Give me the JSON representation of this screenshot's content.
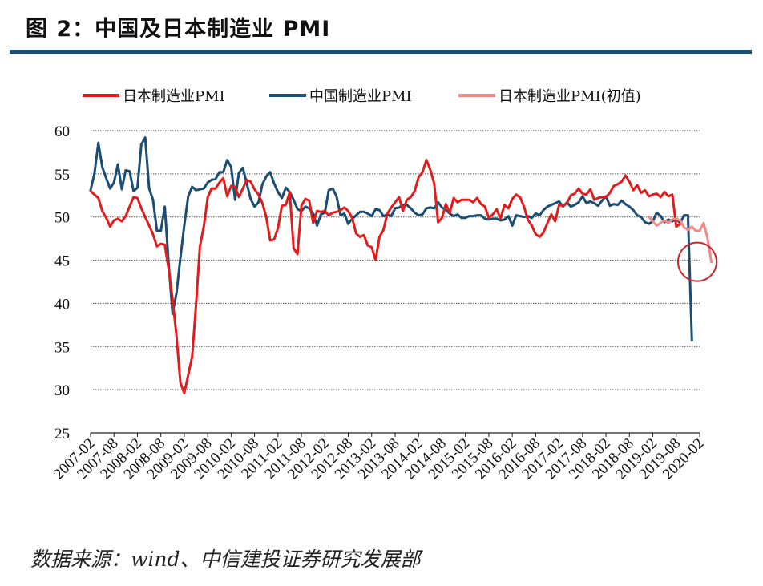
{
  "figure": {
    "title": "图 2：中国及日本制造业 PMI",
    "source": "数据来源：wind、中信建投证券研究发展部"
  },
  "colors": {
    "title_rule": "#1b4e72",
    "japan": "#e21c1c",
    "china": "#1b4e72",
    "japan_prelim": "#f08a8a",
    "circle": "#d0232a"
  },
  "chart_data": {
    "type": "line",
    "title": "",
    "xlabel": "",
    "ylabel": "",
    "ylim": [
      25,
      60
    ],
    "yticks": [
      25,
      30,
      35,
      40,
      45,
      50,
      55,
      60
    ],
    "grid": true,
    "legend_position": "top",
    "x_start": "2007-02",
    "x_end": "2020-02",
    "xticks": [
      "2007-02",
      "2007-08",
      "2008-02",
      "2008-08",
      "2009-02",
      "2009-08",
      "2010-02",
      "2010-08",
      "2011-02",
      "2011-08",
      "2012-02",
      "2012-08",
      "2013-02",
      "2013-08",
      "2014-02",
      "2014-08",
      "2015-02",
      "2015-08",
      "2016-02",
      "2016-08",
      "2017-02",
      "2017-08",
      "2018-02",
      "2018-08",
      "2019-02",
      "2019-08",
      "2020-02"
    ],
    "series": [
      {
        "name": "日本制造业PMI",
        "key": "japan",
        "start": "2007-02",
        "values": [
          53.0,
          52.6,
          52.2,
          50.7,
          49.9,
          48.9,
          49.6,
          49.8,
          49.5,
          50.1,
          51.2,
          52.3,
          52.2,
          51.0,
          50.0,
          49.0,
          48.0,
          46.6,
          46.9,
          46.8,
          44.0,
          40.5,
          36.2,
          30.8,
          29.6,
          31.7,
          33.8,
          39.7,
          46.6,
          48.9,
          52.3,
          53.3,
          53.3,
          54.0,
          54.5,
          52.4,
          53.6,
          53.5,
          52.3,
          53.3,
          54.3,
          54.1,
          53.2,
          52.6,
          51.6,
          50.0,
          47.3,
          47.4,
          48.7,
          51.3,
          51.4,
          52.9,
          46.4,
          45.7,
          51.3,
          52.1,
          51.9,
          49.3,
          50.7,
          50.6,
          50.7,
          50.2,
          50.5,
          50.6,
          50.8,
          51.1,
          50.7,
          49.9,
          48.1,
          47.7,
          47.9,
          46.7,
          46.5,
          45.0,
          47.7,
          48.5,
          50.4,
          51.1,
          51.7,
          52.3,
          50.7,
          52.0,
          52.3,
          53.0,
          54.6,
          55.2,
          56.6,
          55.5,
          53.9,
          49.4,
          49.9,
          51.5,
          50.5,
          52.2,
          51.7,
          52.0,
          52.0,
          52.0,
          51.7,
          52.2,
          51.5,
          51.2,
          49.9,
          50.3,
          50.9,
          49.8,
          51.4,
          51.0,
          52.1,
          52.6,
          52.3,
          51.2,
          49.7,
          49.0,
          48.0,
          47.7,
          48.2,
          49.3,
          50.3,
          49.5,
          51.4,
          51.3,
          51.6,
          52.5,
          52.7,
          53.3,
          52.7,
          52.6,
          53.2,
          52.0,
          52.2,
          52.3,
          52.3,
          52.8,
          53.6,
          53.8,
          54.1,
          54.8,
          54.1,
          53.1,
          53.7,
          52.8,
          53.1,
          52.4,
          52.6,
          52.7,
          52.3,
          52.9,
          52.4,
          52.6,
          48.9,
          49.2
        ]
      },
      {
        "name": "中国制造业PMI",
        "key": "china",
        "start": "2007-02",
        "values": [
          53.1,
          55.1,
          58.6,
          55.8,
          54.5,
          53.3,
          54.0,
          56.1,
          53.2,
          55.4,
          55.3,
          53.0,
          53.4,
          58.4,
          59.2,
          53.3,
          52.0,
          48.4,
          48.4,
          51.2,
          44.6,
          38.8,
          41.2,
          45.3,
          49.0,
          52.4,
          53.5,
          53.1,
          53.2,
          53.3,
          54.0,
          54.3,
          54.4,
          55.2,
          55.2,
          56.6,
          55.8,
          52.0,
          55.1,
          55.7,
          53.9,
          52.1,
          51.2,
          51.7,
          53.8,
          54.7,
          55.2,
          53.9,
          52.9,
          52.2,
          53.4,
          52.9,
          52.0,
          50.9,
          50.7,
          51.2,
          51.0,
          50.4,
          49.0,
          50.3,
          50.5,
          53.1,
          53.3,
          52.4,
          50.2,
          50.4,
          49.2,
          49.8,
          50.2,
          50.6,
          50.6,
          50.4,
          50.1,
          50.9,
          50.8,
          50.1,
          50.3,
          50.1,
          51.0,
          51.1,
          51.4,
          51.4,
          51.0,
          50.5,
          50.2,
          50.3,
          51.0,
          51.1,
          51.0,
          51.7,
          51.1,
          50.8,
          50.4,
          50.1,
          50.3,
          49.9,
          49.9,
          50.1,
          50.1,
          50.2,
          50.2,
          49.8,
          49.7,
          49.8,
          49.8,
          49.6,
          49.7,
          50.1,
          49.0,
          50.2,
          50.1,
          50.0,
          50.1,
          49.9,
          50.4,
          50.2,
          50.8,
          51.2,
          51.4,
          51.6,
          51.8,
          51.2,
          51.7,
          51.2,
          51.4,
          51.7,
          52.4,
          51.6,
          51.8,
          51.6,
          51.3,
          51.9,
          52.4,
          51.3,
          51.5,
          51.4,
          51.9,
          51.5,
          51.2,
          50.8,
          50.2,
          50.0,
          49.4,
          49.2,
          49.5,
          50.5,
          50.1,
          49.4,
          49.7,
          49.5,
          49.8,
          49.3,
          50.2,
          50.2,
          35.7
        ]
      },
      {
        "name": "日本制造业PMI(初值)",
        "key": "japan_prelim",
        "start": "2019-01",
        "values": [
          50.0,
          49.5,
          49.0,
          49.3,
          49.6,
          49.3,
          49.7,
          49.8,
          49.6,
          48.8,
          48.5,
          48.9,
          48.4,
          48.4,
          49.3,
          47.6,
          44.8
        ]
      }
    ],
    "annotations": [
      {
        "type": "circle",
        "at": "2020-02",
        "value": 45
      }
    ]
  }
}
